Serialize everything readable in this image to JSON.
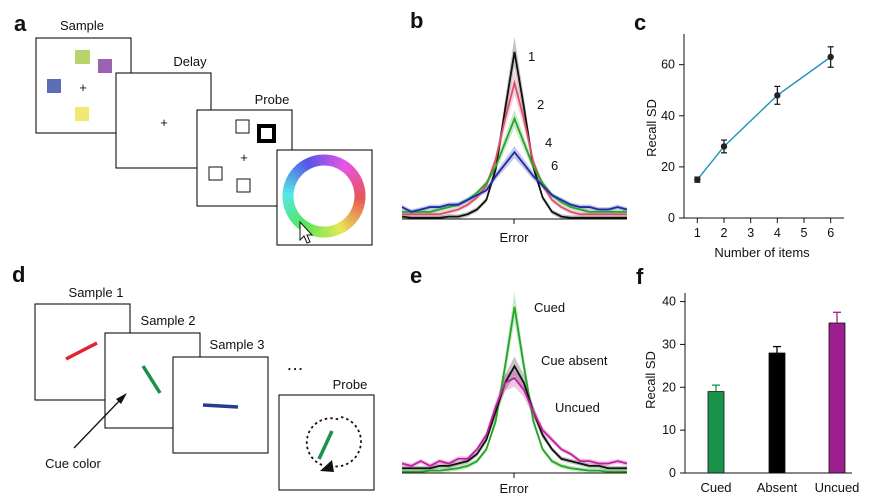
{
  "panels": {
    "a": {
      "label": "a",
      "sample_title": "Sample",
      "delay_title": "Delay",
      "probe_title": "Probe",
      "fixation": "+",
      "colors": {
        "green": "#b5d46a",
        "purple": "#9a63b0",
        "blue": "#5b6db5",
        "yellow": "#f0e870"
      }
    },
    "b": {
      "label": "b",
      "xlabel": "Error",
      "series_labels": [
        "1",
        "2",
        "4",
        "6"
      ]
    },
    "c": {
      "label": "c"
    },
    "d": {
      "label": "d",
      "sample1_title": "Sample 1",
      "sample2_title": "Sample 2",
      "sample3_title": "Sample 3",
      "probe_title": "Probe",
      "dots": "...",
      "cue_label": "Cue color",
      "colors": {
        "red": "#e1242f",
        "green": "#19924a",
        "blue": "#283c8f"
      }
    },
    "e": {
      "label": "e",
      "xlabel": "Error",
      "series_labels": [
        "Cued",
        "Cue absent",
        "Uncued"
      ]
    },
    "f": {
      "label": "f"
    }
  },
  "chart_data": [
    {
      "id": "b",
      "type": "line",
      "title": "",
      "xlabel": "Error",
      "ylabel": "",
      "x": [
        -12,
        -11,
        -10,
        -9,
        -8,
        -7,
        -6,
        -5,
        -4,
        -3,
        -2,
        -1,
        0,
        1,
        2,
        3,
        4,
        5,
        6,
        7,
        8,
        9,
        10,
        11,
        12
      ],
      "ylim": [
        0,
        75
      ],
      "series": [
        {
          "name": "1",
          "color": "#111111",
          "values": [
            1,
            0.5,
            0.5,
            0.5,
            0.5,
            1,
            1,
            2,
            4,
            8,
            21,
            46,
            70,
            47,
            22,
            9,
            3,
            1,
            0.5,
            0.5,
            0.5,
            0.5,
            0.5,
            0.5,
            0.5
          ]
        },
        {
          "name": "2",
          "color": "#d9506b",
          "values": [
            2,
            2,
            2,
            2,
            2,
            3,
            4,
            6,
            9,
            14,
            25,
            42,
            57,
            42,
            24,
            14,
            8,
            5,
            3,
            2,
            2,
            2,
            2,
            2,
            2
          ]
        },
        {
          "name": "4",
          "color": "#2aa32a",
          "values": [
            3,
            3,
            3,
            3,
            4,
            5,
            6,
            8,
            11,
            15,
            22,
            32,
            42,
            32,
            22,
            15,
            10,
            7,
            5,
            4,
            3,
            3,
            3,
            3,
            3
          ]
        },
        {
          "name": "6",
          "color": "#1c2aa6",
          "values": [
            5,
            3,
            4,
            5,
            5,
            6,
            6,
            8,
            10,
            12,
            18,
            23,
            28,
            23,
            18,
            14,
            10,
            8,
            6,
            5,
            5,
            4,
            4,
            5,
            4
          ]
        }
      ]
    },
    {
      "id": "c",
      "type": "line",
      "title": "",
      "xlabel": "Number of items",
      "ylabel": "Recall SD",
      "x": [
        1,
        2,
        4,
        6
      ],
      "values": [
        15,
        28,
        48,
        63
      ],
      "errors": [
        1,
        2.5,
        3.5,
        4
      ],
      "xlim": [
        0.5,
        6.5
      ],
      "ylim": [
        0,
        72
      ],
      "xticks": [
        "1",
        "2",
        "3",
        "4",
        "5",
        "6"
      ],
      "yticks": [
        "0",
        "20",
        "40",
        "60"
      ],
      "color": "#1f8fbf"
    },
    {
      "id": "e",
      "type": "line",
      "title": "",
      "xlabel": "Error",
      "ylabel": "",
      "x": [
        -12,
        -11,
        -10,
        -9,
        -8,
        -7,
        -6,
        -5,
        -4,
        -3,
        -2,
        -1,
        0,
        1,
        2,
        3,
        4,
        5,
        6,
        7,
        8,
        9,
        10,
        11,
        12
      ],
      "ylim": [
        0,
        75
      ],
      "series": [
        {
          "name": "Cued",
          "color": "#22a522",
          "values": [
            0.5,
            0.5,
            0.5,
            1,
            1,
            1.5,
            2,
            3,
            5,
            10,
            22,
            45,
            70,
            45,
            22,
            10,
            5,
            3,
            2,
            1.5,
            1,
            1,
            0.5,
            0.5,
            0.5
          ]
        },
        {
          "name": "Cue absent",
          "color": "#111111",
          "values": [
            2,
            2,
            2,
            2,
            3,
            3,
            4,
            5,
            8,
            14,
            26,
            38,
            45,
            38,
            26,
            16,
            10,
            6,
            5,
            4,
            3,
            3,
            2,
            2,
            2
          ]
        },
        {
          "name": "Uncued",
          "color": "#c1219e",
          "values": [
            4,
            3,
            5,
            3,
            5,
            4,
            6,
            6,
            10,
            16,
            28,
            38,
            40,
            35,
            26,
            18,
            14,
            10,
            8,
            5,
            5,
            4,
            4,
            5,
            4
          ]
        }
      ]
    },
    {
      "id": "f",
      "type": "bar",
      "title": "",
      "xlabel": "",
      "ylabel": "Recall SD",
      "categories": [
        "Cued",
        "Absent",
        "Uncued"
      ],
      "values": [
        19,
        28,
        35
      ],
      "errors": [
        1.5,
        1.5,
        2.5
      ],
      "colors": [
        "#19924a",
        "#000000",
        "#9c1e8f"
      ],
      "ylim": [
        0,
        42
      ],
      "yticks": [
        "0",
        "10",
        "20",
        "30",
        "40"
      ]
    }
  ]
}
